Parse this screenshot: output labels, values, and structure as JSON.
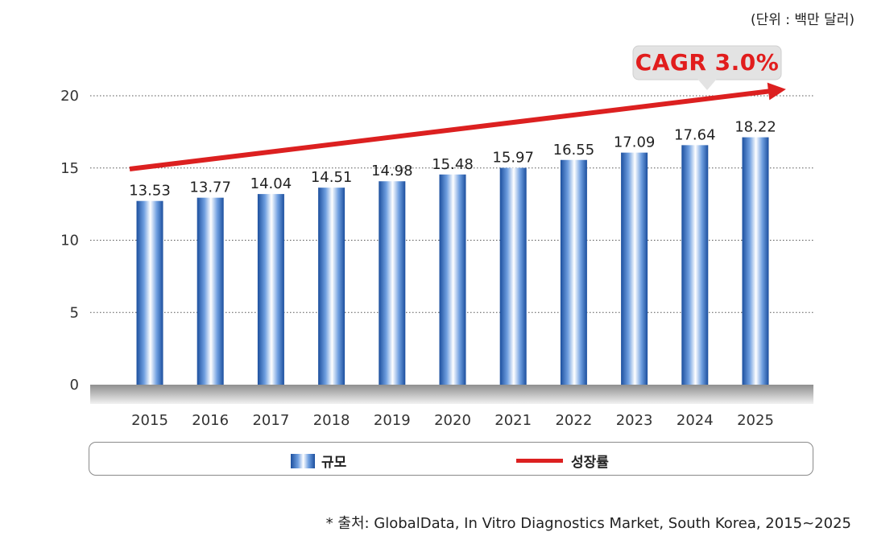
{
  "unit_label": "(단위 : 백만 달러)",
  "source_text": "* 출처: GlobalData, In Vitro Diagnostics Market, South Korea, 2015~2025",
  "annotation": "CAGR 3.0%",
  "legend": {
    "bar_label": "규모",
    "line_label": "성장률"
  },
  "colors": {
    "bar": "#2a5fb0",
    "line": "#dc2020",
    "callout": "#e3e3e3"
  },
  "chart_data": {
    "type": "bar",
    "categories": [
      "2015",
      "2016",
      "2017",
      "2018",
      "2019",
      "2020",
      "2021",
      "2022",
      "2023",
      "2024",
      "2025"
    ],
    "series": [
      {
        "name": "규모",
        "values": [
          13.53,
          13.77,
          14.04,
          14.51,
          14.98,
          15.48,
          15.97,
          16.55,
          17.09,
          17.64,
          18.22
        ]
      }
    ],
    "data_labels": [
      "13.53",
      "13.77",
      "14.04",
      "14.51",
      "14.98",
      "15.48",
      "15.97",
      "16.55",
      "17.09",
      "17.64",
      "18.22"
    ],
    "y_ticks": [
      "0",
      "5",
      "10",
      "15",
      "20"
    ],
    "ylim": [
      0,
      20
    ],
    "grid": true,
    "trend_arrow": {
      "name": "성장률",
      "label": "CAGR 3.0%"
    },
    "legend_position": "bottom"
  }
}
